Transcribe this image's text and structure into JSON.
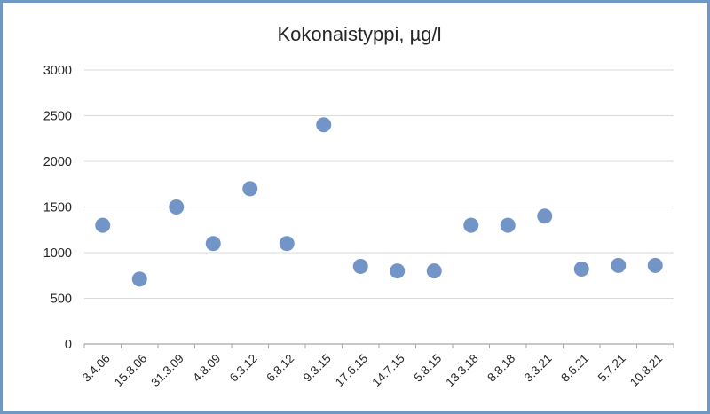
{
  "window": {
    "border_color": "#7098c5",
    "background_color": "#ffffff"
  },
  "chart_data": {
    "type": "scatter",
    "title": "Kokonaistyppi, µg/l",
    "categories": [
      "3.4.06",
      "15.8.06",
      "31.3.09",
      "4.8.09",
      "6.3.12",
      "6.8.12",
      "9.3.15",
      "17.6.15",
      "14.7.15",
      "5.8.15",
      "13.3.18",
      "8.8.18",
      "3.3.21",
      "8.6.21",
      "5.7.21",
      "10.8.21"
    ],
    "values": [
      1300,
      710,
      1500,
      1100,
      1700,
      1100,
      2400,
      850,
      800,
      800,
      1300,
      1300,
      1400,
      820,
      860,
      860
    ],
    "xlabel": "",
    "ylabel": "",
    "ylim": [
      0,
      3000
    ],
    "y_ticks": [
      0,
      500,
      1000,
      1500,
      2000,
      2500,
      3000
    ],
    "grid": "horizontal",
    "legend": "none",
    "marker_color": "#7394c6",
    "gridline_color": "#d9d9d9",
    "axis_color": "#a6a6a6",
    "text_color": "#262626"
  }
}
